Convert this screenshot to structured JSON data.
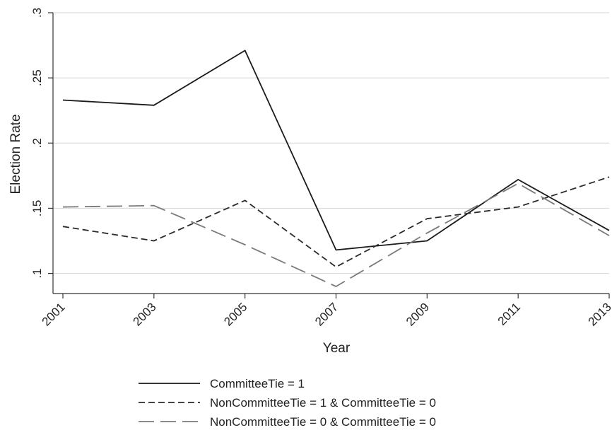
{
  "chart_data": {
    "type": "line",
    "xlabel": "Year",
    "ylabel": "Election Rate",
    "x": [
      2001,
      2003,
      2005,
      2007,
      2009,
      2011,
      2013
    ],
    "x_tick_labels": [
      "2001",
      "2003",
      "2005",
      "2007",
      "2009",
      "2011",
      "2013"
    ],
    "xlim": [
      2001,
      2013
    ],
    "y_ticks": [
      0.1,
      0.15,
      0.2,
      0.25,
      0.3
    ],
    "y_tick_labels": [
      ".1",
      ".15",
      ".2",
      ".25",
      ".3"
    ],
    "ylim": [
      0.09,
      0.3
    ],
    "grid": true,
    "legend_position": "bottom",
    "series": [
      {
        "name": "CommitteeTie = 1",
        "style": "solid",
        "color": "#1a1a1a",
        "values": [
          0.233,
          0.229,
          0.271,
          0.118,
          0.125,
          0.172,
          0.133
        ]
      },
      {
        "name": "NonCommitteeTie = 1 & CommitteeTie = 0",
        "style": "short-dash",
        "color": "#2a2a2a",
        "values": [
          0.136,
          0.125,
          0.156,
          0.105,
          0.142,
          0.151,
          0.174
        ]
      },
      {
        "name": "NonCommitteeTie = 0 & CommitteeTie = 0",
        "style": "long-dash",
        "color": "#7a7a7a",
        "values": [
          0.151,
          0.152,
          0.122,
          0.09,
          0.131,
          0.169,
          0.129
        ]
      }
    ]
  }
}
